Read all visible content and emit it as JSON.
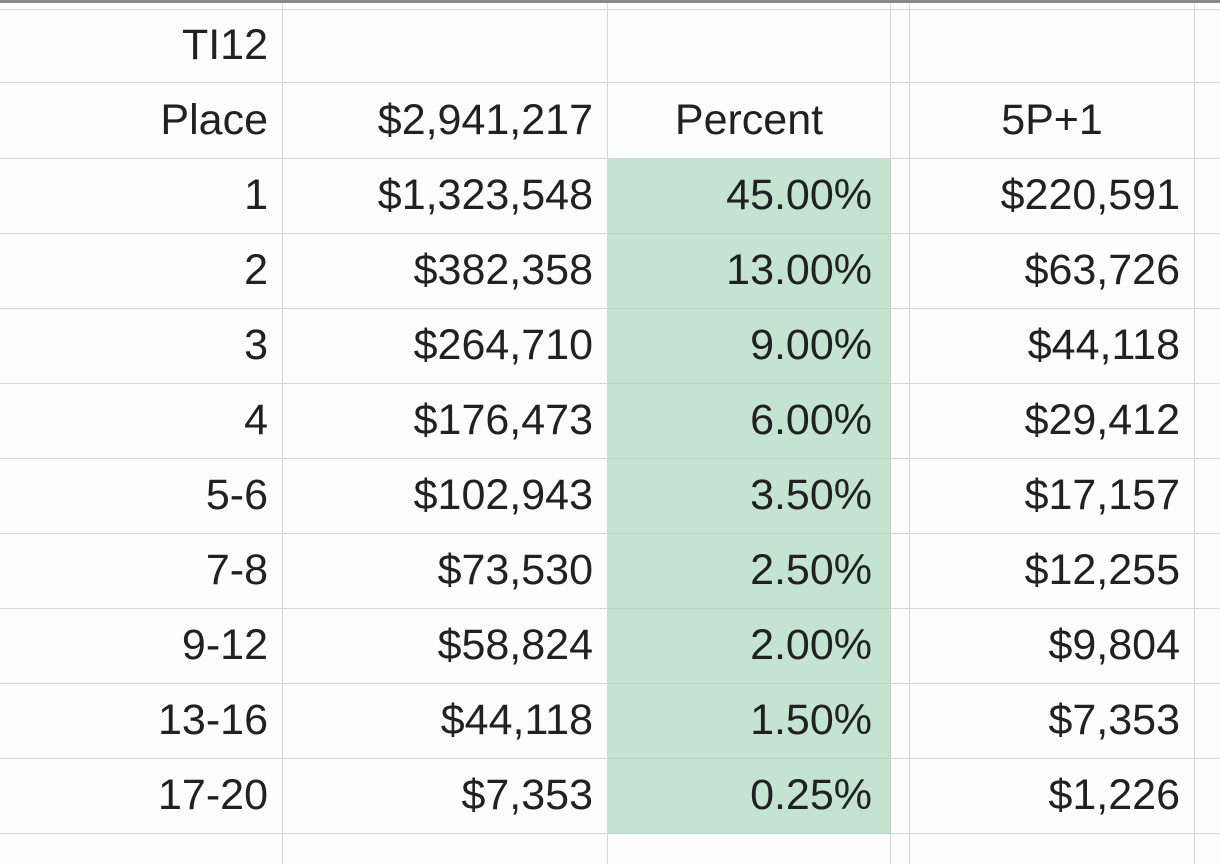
{
  "sheet": {
    "title": "TI12",
    "headers": {
      "place": "Place",
      "total": "$2,941,217",
      "percent": "Percent",
      "bonus": "5P+1"
    },
    "rows": [
      {
        "place": "1",
        "amount": "$1,323,548",
        "percent": "45.00%",
        "bonus": "$220,591"
      },
      {
        "place": "2",
        "amount": "$382,358",
        "percent": "13.00%",
        "bonus": "$63,726"
      },
      {
        "place": "3",
        "amount": "$264,710",
        "percent": "9.00%",
        "bonus": "$44,118"
      },
      {
        "place": "4",
        "amount": "$176,473",
        "percent": "6.00%",
        "bonus": "$29,412"
      },
      {
        "place": "5-6",
        "amount": "$102,943",
        "percent": "3.50%",
        "bonus": "$17,157"
      },
      {
        "place": "7-8",
        "amount": "$73,530",
        "percent": "2.50%",
        "bonus": "$12,255"
      },
      {
        "place": "9-12",
        "amount": "$58,824",
        "percent": "2.00%",
        "bonus": "$9,804"
      },
      {
        "place": "13-16",
        "amount": "$44,118",
        "percent": "1.50%",
        "bonus": "$7,353"
      },
      {
        "place": "17-20",
        "amount": "$7,353",
        "percent": "0.25%",
        "bonus": "$1,226"
      }
    ],
    "colors": {
      "highlight_green": "#c5e3d1",
      "gridline": "#d6d6d6",
      "text": "#212121",
      "background": "#fdfdfd",
      "top_bar": "#8a8a8a"
    }
  }
}
